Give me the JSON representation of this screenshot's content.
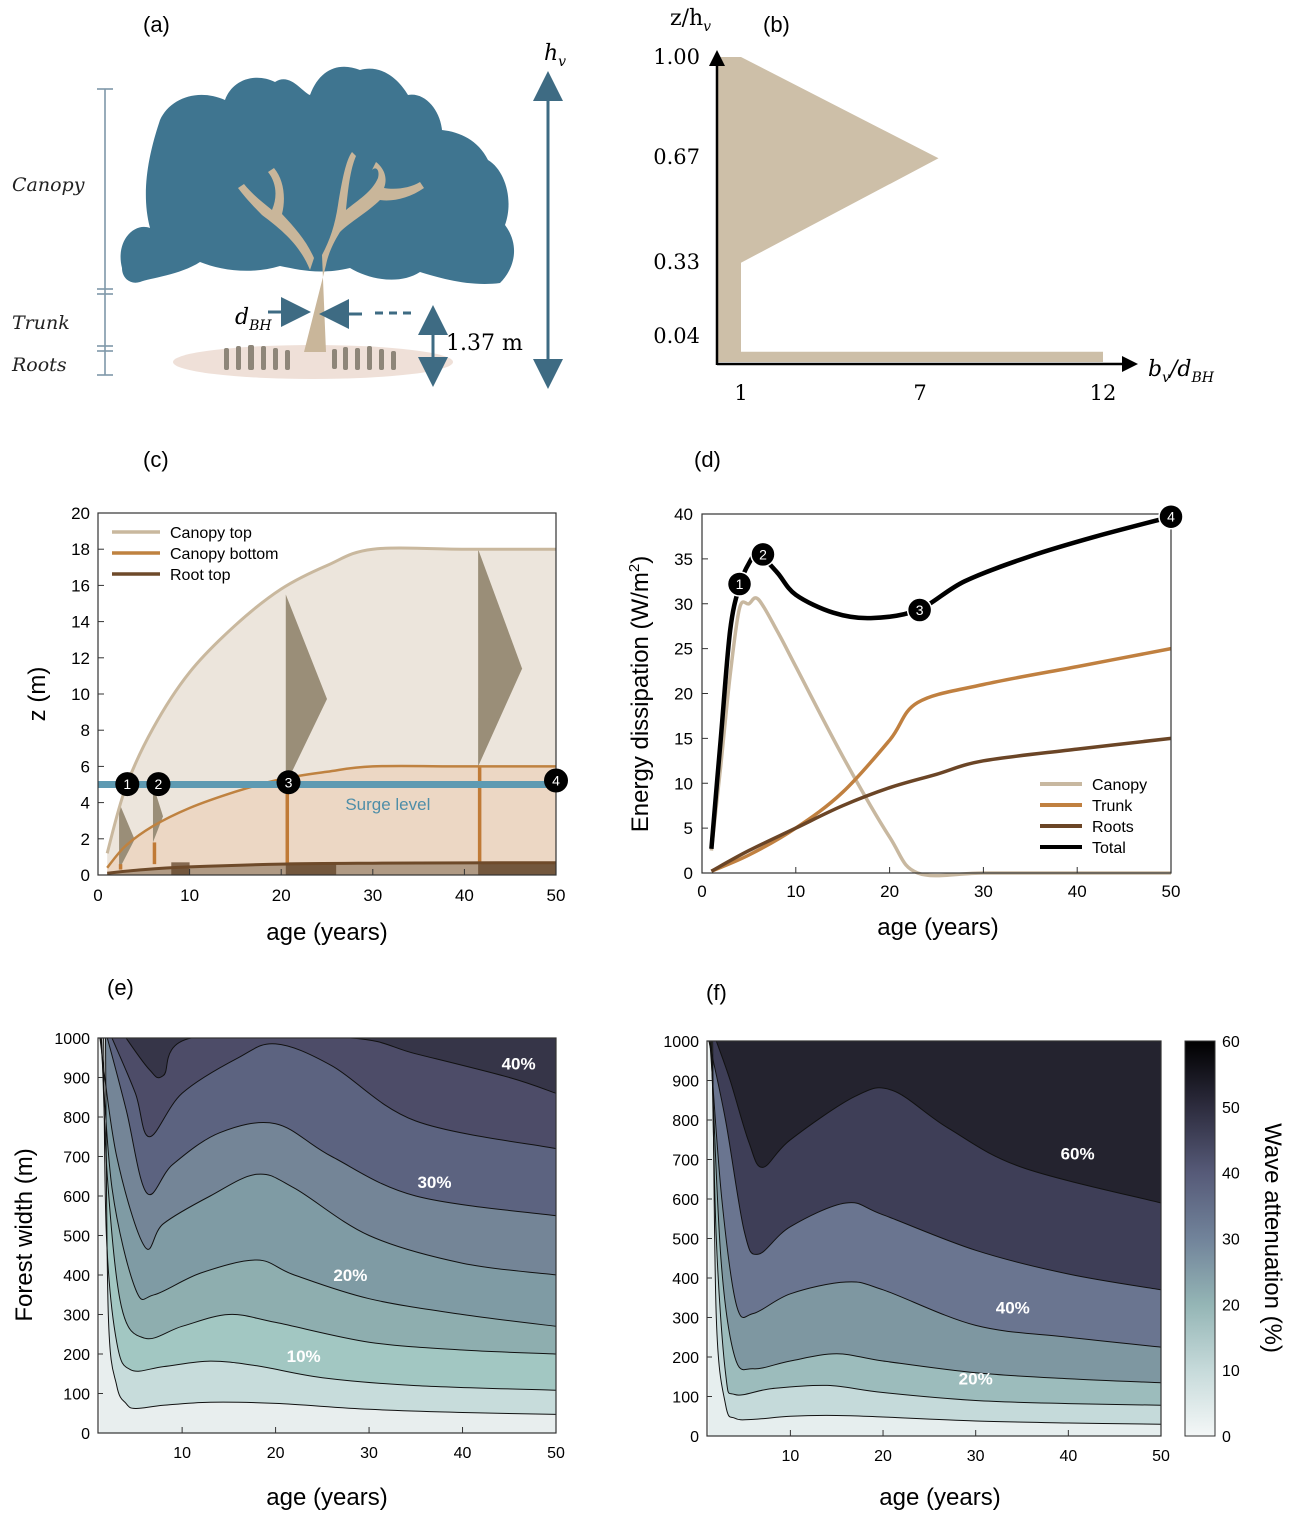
{
  "panel_labels": {
    "a": "(a)",
    "b": "(b)",
    "c": "(c)",
    "d": "(d)",
    "e": "(e)",
    "f": "(f)"
  },
  "panel_a": {
    "labels": {
      "canopy": "Canopy",
      "trunk": "Trunk",
      "roots": "Roots",
      "dbh": "d",
      "dbh_sub": "BH",
      "height": "1.37 m",
      "hv": "h",
      "hv_sub": "v"
    },
    "colors": {
      "canopy": "#3f7590",
      "trunk": "#c9b69a",
      "ground": "#efe0d8",
      "arrow": "#3e6b83",
      "bracket": "#7f98a8"
    }
  },
  "chart_data": [
    {
      "panel": "b",
      "type": "area",
      "ylabel_text": "z/h",
      "ylabel_sub": "v",
      "xlabel_text": "b",
      "xlabel_sub": "v",
      "xlabel_mid": "/d",
      "xlabel_sub2": "BH",
      "y_ticks": [
        "0.04",
        "0.33",
        "0.67",
        "1.00"
      ],
      "x_ticks": [
        "1",
        "7",
        "12"
      ],
      "profile": [
        [
          1,
          0
        ],
        [
          12,
          0
        ],
        [
          12,
          0.04
        ],
        [
          1,
          0.04
        ],
        [
          1,
          0.33
        ],
        [
          7,
          0.67
        ],
        [
          1,
          1.0
        ]
      ],
      "color": "#cdbfa8"
    },
    {
      "panel": "c",
      "type": "line",
      "xlabel": "age (years)",
      "ylabel": "z (m)",
      "xlim": [
        0,
        50
      ],
      "ylim": [
        0,
        20
      ],
      "x_ticks": [
        "0",
        "10",
        "20",
        "30",
        "40",
        "50"
      ],
      "y_ticks": [
        "0",
        "2",
        "4",
        "6",
        "8",
        "10",
        "12",
        "14",
        "16",
        "18",
        "20"
      ],
      "series": [
        {
          "name": "Canopy top",
          "color": "#c9b89e",
          "x": [
            1,
            3,
            6,
            10,
            15,
            20,
            25,
            30,
            40,
            50
          ],
          "y": [
            1.2,
            4.8,
            8.1,
            11.2,
            13.8,
            15.8,
            17.1,
            18,
            18,
            18
          ]
        },
        {
          "name": "Canopy bottom",
          "color": "#bf8240",
          "x": [
            1,
            3,
            6,
            10,
            15,
            20,
            25,
            30,
            40,
            50
          ],
          "y": [
            0.4,
            1.6,
            2.7,
            3.7,
            4.6,
            5.3,
            5.7,
            6,
            6,
            6
          ]
        },
        {
          "name": "Root top",
          "color": "#6e4a2a",
          "x": [
            1,
            5,
            10,
            20,
            30,
            40,
            50
          ],
          "y": [
            0.1,
            0.3,
            0.45,
            0.6,
            0.65,
            0.67,
            0.68
          ]
        }
      ],
      "surge_level": {
        "label": "Surge level",
        "value": 5,
        "color": "#5e9ab2"
      },
      "fills": {
        "upper": "#ece5dc",
        "lower": "#ecd7c4",
        "roots": "#b09a84"
      },
      "trees": [
        {
          "x": 2.3,
          "top": 4,
          "bottom": 0.3,
          "width": 1.7
        },
        {
          "x": 6,
          "top": 5,
          "bottom": 1.8,
          "width": 1.1
        },
        {
          "x": 20.5,
          "top": 15.5,
          "bottom": 5,
          "width": 4.5
        },
        {
          "x": 41.5,
          "top": 18,
          "bottom": 6,
          "width": 4.8
        }
      ],
      "markers": [
        {
          "label": "1",
          "x": 3.2,
          "y": 4.8
        },
        {
          "label": "2",
          "x": 6.6,
          "y": 4.8
        },
        {
          "label": "3",
          "x": 20.8,
          "y": 4.9
        },
        {
          "label": "4",
          "x": 50,
          "y": 5
        }
      ]
    },
    {
      "panel": "d",
      "type": "line",
      "xlabel": "age (years)",
      "ylabel_text": "Energy dissipation (W/m",
      "ylabel_sup": "2",
      "ylabel_close": ")",
      "xlim": [
        0,
        50
      ],
      "ylim": [
        0,
        40
      ],
      "x_ticks": [
        "0",
        "10",
        "20",
        "30",
        "40",
        "50"
      ],
      "y_ticks": [
        "0",
        "5",
        "10",
        "15",
        "20",
        "25",
        "30",
        "35",
        "40"
      ],
      "legend": "right",
      "series": [
        {
          "name": "Canopy",
          "color": "#c8b8a0",
          "x": [
            1,
            2,
            3,
            4,
            5,
            6,
            8,
            10,
            15,
            20,
            23,
            30,
            40,
            50
          ],
          "y": [
            2.5,
            12,
            22,
            29.5,
            30,
            30.5,
            27,
            23,
            13,
            4,
            0,
            0,
            0,
            0
          ]
        },
        {
          "name": "Trunk",
          "color": "#c08040",
          "x": [
            1,
            5,
            10,
            15,
            20,
            23,
            30,
            40,
            50
          ],
          "y": [
            0.2,
            2,
            5,
            9,
            14.8,
            19,
            21,
            23,
            25
          ]
        },
        {
          "name": "Roots",
          "color": "#6b4526",
          "x": [
            1,
            5,
            10,
            15,
            20,
            25,
            30,
            40,
            50
          ],
          "y": [
            0.2,
            2.5,
            5,
            7.5,
            9.5,
            11,
            12.5,
            13.8,
            15
          ]
        },
        {
          "name": "Total",
          "color": "#000000",
          "x": [
            1,
            2,
            3,
            4,
            5,
            6,
            8,
            10,
            14,
            18,
            23,
            28,
            35,
            42,
            50
          ],
          "y": [
            2.7,
            15,
            27,
            32,
            34.5,
            35.5,
            33.5,
            31,
            29,
            28.4,
            29.3,
            32.5,
            35.3,
            37.5,
            39.7
          ]
        }
      ],
      "markers": [
        {
          "label": "1",
          "x": 4,
          "y": 32.2
        },
        {
          "label": "2",
          "x": 6.5,
          "y": 35.5
        },
        {
          "label": "3",
          "x": 23.2,
          "y": 29.3
        },
        {
          "label": "4",
          "x": 50,
          "y": 39.7
        }
      ]
    },
    {
      "panel": "e",
      "type": "heatmap",
      "xlabel": "age (years)",
      "ylabel": "Forest width (m)",
      "xlim": [
        1,
        50
      ],
      "ylim": [
        0,
        1000
      ],
      "x_ticks": [
        "10",
        "20",
        "30",
        "40",
        "50"
      ],
      "y_ticks": [
        "0",
        "100",
        "200",
        "300",
        "400",
        "500",
        "600",
        "700",
        "800",
        "900",
        "1000"
      ],
      "levels": [
        {
          "fill": "#e8eeee",
          "contour": [
            [
              1.8,
              1000
            ],
            [
              2.1,
              300
            ],
            [
              3,
              120
            ],
            [
              4,
              75
            ],
            [
              5,
              62
            ],
            [
              8,
              70
            ],
            [
              13,
              78
            ],
            [
              20,
              75
            ],
            [
              30,
              60
            ],
            [
              40,
              52
            ],
            [
              50,
              47
            ]
          ]
        },
        {
          "fill": "#c7dcdb",
          "contour": [
            [
              1.6,
              1000
            ],
            [
              1.9,
              500
            ],
            [
              3,
              230
            ],
            [
              4.5,
              160
            ],
            [
              8,
              168
            ],
            [
              13,
              182
            ],
            [
              18,
              170
            ],
            [
              25,
              140
            ],
            [
              35,
              120
            ],
            [
              50,
              108
            ]
          ]
        },
        {
          "fill": "#a2c7c2",
          "contour": [
            [
              1.4,
              1000
            ],
            [
              2,
              650
            ],
            [
              3.5,
              320
            ],
            [
              6,
              240
            ],
            [
              10,
              270
            ],
            [
              15,
              300
            ],
            [
              20,
              280
            ],
            [
              30,
              230
            ],
            [
              40,
              210
            ],
            [
              50,
              200
            ]
          ]
        },
        {
          "fill": "#8eaeaf",
          "contour": [
            [
              1.3,
              1000
            ],
            [
              2.5,
              620
            ],
            [
              5,
              365
            ],
            [
              7,
              350
            ],
            [
              12,
              405
            ],
            [
              18,
              438
            ],
            [
              22,
              400
            ],
            [
              30,
              340
            ],
            [
              40,
              300
            ],
            [
              50,
              270
            ]
          ]
        },
        {
          "fill": "#7f9ba4",
          "contour": [
            [
              1.2,
              1000
            ],
            [
              3,
              700
            ],
            [
              6,
              472
            ],
            [
              8,
              530
            ],
            [
              13,
              600
            ],
            [
              18,
              655
            ],
            [
              22,
              620
            ],
            [
              30,
              500
            ],
            [
              40,
              430
            ],
            [
              50,
              400
            ]
          ]
        },
        {
          "fill": "#748597",
          "contour": [
            [
              2,
              1000
            ],
            [
              4,
              820
            ],
            [
              6.2,
              608
            ],
            [
              9,
              680
            ],
            [
              14,
              760
            ],
            [
              20,
              783
            ],
            [
              26,
              700
            ],
            [
              35,
              600
            ],
            [
              50,
              550
            ]
          ]
        },
        {
          "fill": "#5c6380",
          "contour": [
            [
              2.5,
              1000
            ],
            [
              5,
              860
            ],
            [
              6.5,
              750
            ],
            [
              10,
              860
            ],
            [
              16,
              950
            ],
            [
              20,
              985
            ],
            [
              26,
              930
            ],
            [
              35,
              790
            ],
            [
              50,
              720
            ]
          ]
        },
        {
          "fill": "#4d4c68",
          "contour": [
            [
              4,
              1000
            ],
            [
              6.5,
              920
            ],
            [
              8,
              905
            ],
            [
              11,
              1000
            ],
            [
              28,
              1000
            ],
            [
              35,
              960
            ],
            [
              45,
              900
            ],
            [
              50,
              860
            ]
          ]
        }
      ],
      "level_cap": {
        "fill": "#363548",
        "contour": [
          [
            5,
            1000
          ],
          [
            7,
            1000
          ]
        ]
      },
      "labels": [
        {
          "text": "10%",
          "x": 23,
          "y": 180
        },
        {
          "text": "20%",
          "x": 28,
          "y": 385
        },
        {
          "text": "30%",
          "x": 37,
          "y": 620
        },
        {
          "text": "40%",
          "x": 46,
          "y": 920
        }
      ]
    },
    {
      "panel": "f",
      "type": "heatmap",
      "xlabel": "age (years)",
      "xlim": [
        1,
        50
      ],
      "ylim": [
        0,
        1000
      ],
      "x_ticks": [
        "10",
        "20",
        "30",
        "40",
        "50"
      ],
      "y_ticks": [
        "0",
        "100",
        "200",
        "300",
        "400",
        "500",
        "600",
        "700",
        "800",
        "900",
        "1000"
      ],
      "levels": [
        {
          "fill": "#e6eeee",
          "contour": [
            [
              1.6,
              1000
            ],
            [
              2,
              300
            ],
            [
              3,
              80
            ],
            [
              4,
              45
            ],
            [
              6,
              42
            ],
            [
              10,
              50
            ],
            [
              15,
              52
            ],
            [
              20,
              48
            ],
            [
              30,
              38
            ],
            [
              40,
              33
            ],
            [
              50,
              30
            ]
          ]
        },
        {
          "fill": "#c5dada",
          "contour": [
            [
              1.5,
              1000
            ],
            [
              2,
              500
            ],
            [
              3,
              160
            ],
            [
              4,
              105
            ],
            [
              8,
              120
            ],
            [
              14,
              128
            ],
            [
              20,
              110
            ],
            [
              30,
              90
            ],
            [
              40,
              82
            ],
            [
              50,
              78
            ]
          ]
        },
        {
          "fill": "#9cbcbc",
          "contour": [
            [
              1.4,
              1000
            ],
            [
              2.5,
              450
            ],
            [
              4,
              200
            ],
            [
              6,
              170
            ],
            [
              10,
              190
            ],
            [
              15,
              208
            ],
            [
              20,
              190
            ],
            [
              30,
              160
            ],
            [
              40,
              145
            ],
            [
              50,
              135
            ]
          ]
        },
        {
          "fill": "#7e97a1",
          "contour": [
            [
              1.3,
              1000
            ],
            [
              2.6,
              600
            ],
            [
              4.2,
              330
            ],
            [
              6,
              310
            ],
            [
              10,
              360
            ],
            [
              16,
              390
            ],
            [
              20,
              370
            ],
            [
              30,
              280
            ],
            [
              40,
              250
            ],
            [
              50,
              225
            ]
          ]
        },
        {
          "fill": "#6a7590",
          "contour": [
            [
              1.2,
              1000
            ],
            [
              3,
              800
            ],
            [
              5,
              520
            ],
            [
              6.5,
              460
            ],
            [
              10,
              530
            ],
            [
              16,
              590
            ],
            [
              20,
              560
            ],
            [
              30,
              470
            ],
            [
              40,
              410
            ],
            [
              50,
              370
            ]
          ]
        },
        {
          "fill": "#3e3e57",
          "contour": [
            [
              2,
              1000
            ],
            [
              3.5,
              900
            ],
            [
              5.5,
              745
            ],
            [
              7,
              680
            ],
            [
              10,
              750
            ],
            [
              17,
              860
            ],
            [
              21,
              875
            ],
            [
              27,
              780
            ],
            [
              35,
              680
            ],
            [
              50,
              590
            ]
          ]
        },
        {
          "fill": "#24232f",
          "contour": [
            [
              3,
              1000
            ],
            [
              20,
              1000
            ],
            [
              50,
              1000
            ]
          ]
        }
      ],
      "top_fill": "#050505",
      "labels": [
        {
          "text": "20%",
          "x": 30,
          "y": 130
        },
        {
          "text": "40%",
          "x": 34,
          "y": 310
        },
        {
          "text": "60%",
          "x": 41,
          "y": 700
        }
      ],
      "colorbar": {
        "label": "Wave attenuation (%)",
        "ticks": [
          "0",
          "10",
          "20",
          "30",
          "40",
          "50",
          "60"
        ],
        "range": [
          0,
          60
        ],
        "stops": [
          "#f4f7f7",
          "#c6dada",
          "#94b5b5",
          "#71839a",
          "#565a78",
          "#2d2c3e",
          "#000000"
        ]
      }
    }
  ]
}
